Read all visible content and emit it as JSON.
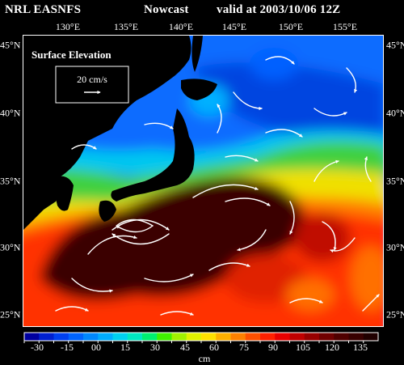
{
  "header": {
    "source": "NRL EASNFS",
    "product": "Nowcast",
    "valid": "valid at 2003/10/06 12Z"
  },
  "legend": {
    "title": "Surface Elevation",
    "scale_label": "20 cm/s"
  },
  "axes": {
    "lon_labels": [
      "130°E",
      "135°E",
      "140°E",
      "145°E",
      "150°E",
      "155°E"
    ],
    "lat_labels": [
      "45°N",
      "40°N",
      "35°N",
      "30°N",
      "25°N"
    ]
  },
  "colorbar": {
    "ticks": [
      "-30",
      "-15",
      "00",
      "15",
      "30",
      "45",
      "60",
      "75",
      "90",
      "105",
      "120",
      "135"
    ],
    "unit": "cm",
    "colors": [
      "#0000a0",
      "#0020d0",
      "#0040f0",
      "#0064ff",
      "#0088ff",
      "#00acff",
      "#00d0f0",
      "#00e8c0",
      "#00f070",
      "#40f000",
      "#a0f000",
      "#e0f000",
      "#ffe000",
      "#ffb000",
      "#ff8000",
      "#ff5000",
      "#ff2000",
      "#e80000",
      "#c00000",
      "#980000",
      "#700000",
      "#500000",
      "#380000",
      "#200000"
    ]
  },
  "map_colors": {
    "land": "#000000",
    "north_cold": "#0a6cff",
    "deep_blue": "#0044e0",
    "coastal_cyan": "#00c8f0",
    "green": "#40d040",
    "yellow": "#f0e000",
    "orange": "#ff8000",
    "red": "#ff3000",
    "warm_core": "#3a0000"
  }
}
